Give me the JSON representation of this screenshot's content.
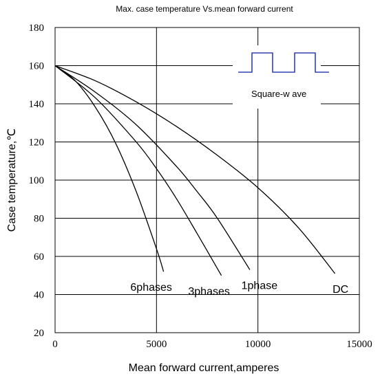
{
  "chart_data": {
    "type": "line",
    "title": "Max. case temperature  Vs.mean  forward  current",
    "xlabel": "Mean forward  current,amperes",
    "ylabel": "Case temperature,℃",
    "xlim": [
      0,
      15000
    ],
    "ylim": [
      20,
      180
    ],
    "x_ticks": [
      0,
      5000,
      10000,
      15000
    ],
    "x_tick_labels": [
      "0",
      "5000",
      "10000",
      "15000"
    ],
    "y_ticks": [
      20,
      40,
      60,
      80,
      100,
      120,
      140,
      160,
      180
    ],
    "y_tick_labels": [
      "20",
      "40",
      "60",
      "80",
      "100",
      "120",
      "140",
      "160",
      "180"
    ],
    "grid": true,
    "series": [
      {
        "name": "6phases",
        "x": [
          0,
          1000,
          2000,
          3000,
          4000,
          5000,
          5350
        ],
        "y": [
          160,
          152,
          138,
          119,
          94,
          64,
          52
        ]
      },
      {
        "name": "3phases",
        "x": [
          0,
          2000,
          4000,
          5000,
          6000,
          7000,
          8200
        ],
        "y": [
          160,
          143,
          120,
          106,
          90,
          72,
          50
        ]
      },
      {
        "name": "1phase",
        "x": [
          0,
          2000,
          4000,
          6000,
          7000,
          8000,
          9600
        ],
        "y": [
          160,
          146,
          129,
          107,
          94,
          80,
          53
        ]
      },
      {
        "name": "DC",
        "x": [
          0,
          2000,
          4000,
          6000,
          8000,
          10000,
          12000,
          13800
        ],
        "y": [
          160,
          152,
          141,
          128,
          113,
          96,
          75,
          51
        ]
      }
    ],
    "annotation": "Square-w ave"
  }
}
